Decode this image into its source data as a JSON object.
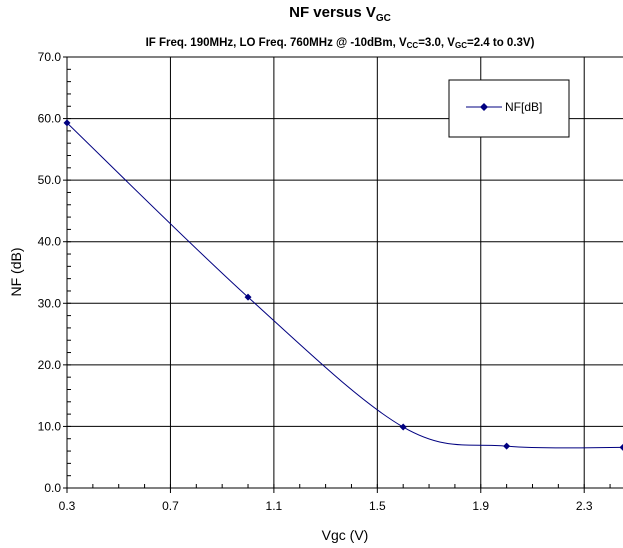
{
  "chart_data": {
    "type": "line",
    "title": {
      "main": "NF versus V",
      "main_sub": "GC"
    },
    "subtitle": {
      "prefix": "IF Freq. 190MHz, LO Freq. 760MHz @ -10dBm, V",
      "vcc_sub": "CC",
      "middle": "=3.0, V",
      "vgc_sub": "GC",
      "suffix": "=2.4 to 0.3V)"
    },
    "xlabel": "Vgc (V)",
    "ylabel": "NF (dB)",
    "xlim": [
      0.3,
      2.45
    ],
    "ylim": [
      0,
      70
    ],
    "x_ticks": [
      "0.3",
      "0.7",
      "1.1",
      "1.5",
      "1.9",
      "2.3"
    ],
    "x_tick_values": [
      0.3,
      0.7,
      1.1,
      1.5,
      1.9,
      2.3
    ],
    "y_ticks": [
      "0.0",
      "10.0",
      "20.0",
      "30.0",
      "40.0",
      "50.0",
      "60.0",
      "70.0"
    ],
    "y_tick_values": [
      0,
      10,
      20,
      30,
      40,
      50,
      60,
      70
    ],
    "grid": true,
    "legend_position": "top-right",
    "series": [
      {
        "name": "NF[dB]",
        "color": "#000080",
        "marker": "diamond",
        "x": [
          0.3,
          1.0,
          1.6,
          2.0,
          2.45
        ],
        "y": [
          59.3,
          31.0,
          9.9,
          6.8,
          6.6
        ]
      }
    ]
  }
}
